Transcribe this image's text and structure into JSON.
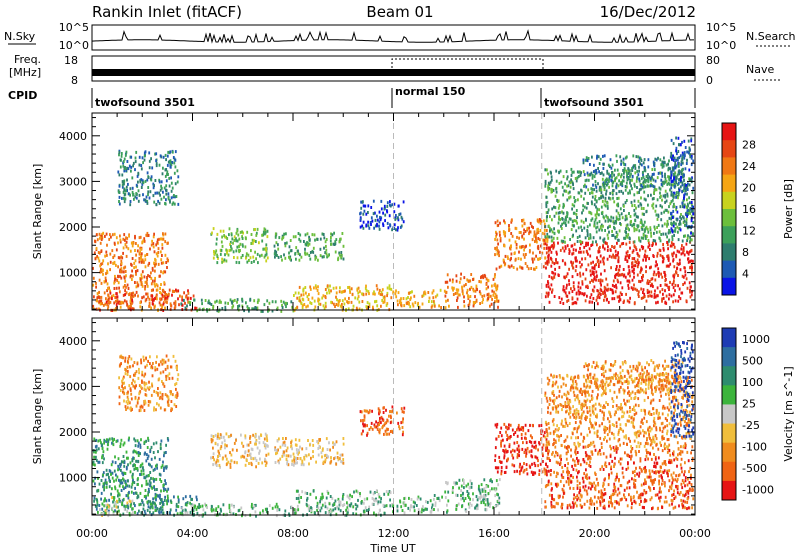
{
  "header": {
    "station": "Rankin Inlet (fitACF)",
    "beam": "Beam 01",
    "date": "16/Dec/2012"
  },
  "top_strips": {
    "nsky_label": "N.Sky",
    "nsearch_label": "N.Search",
    "nsky_ticks": [
      "10^5",
      "10^0"
    ],
    "nsearch_ticks": [
      "10^5",
      "10^0"
    ],
    "freq_label_1": "Freq.",
    "freq_label_2": "[MHz]",
    "freq_ticks": [
      "18",
      "8"
    ],
    "nave_label": "Nave",
    "nave_ticks": [
      "80",
      "0"
    ],
    "cpid_label": "CPID",
    "cpid_segments": [
      {
        "text": "twofsound 3501",
        "start_hour": 0,
        "end_hour": 12
      },
      {
        "text": "normal 150",
        "start_hour": 12,
        "end_hour": 17.9
      },
      {
        "text": "twofsound 3501",
        "start_hour": 17.9,
        "end_hour": 24
      }
    ]
  },
  "chart_data": [
    {
      "type": "heatmap",
      "title": "",
      "xlabel": "Time UT",
      "ylabel": "Slant Range [km]",
      "xlim": [
        0,
        24
      ],
      "ylim": [
        180,
        4500
      ],
      "x_ticks": [
        "00:00",
        "04:00",
        "08:00",
        "12:00",
        "16:00",
        "20:00",
        "00:00"
      ],
      "y_ticks": [
        1000,
        2000,
        3000,
        4000
      ],
      "colorbar": {
        "label": "Power [dB]",
        "ticks": [
          "4",
          "8",
          "12",
          "16",
          "20",
          "24",
          "28"
        ],
        "colors": [
          "#0a14e6",
          "#1e5ab4",
          "#2e7d6e",
          "#3ca05a",
          "#6cbf3c",
          "#c8d21e",
          "#f5a514",
          "#f07814",
          "#e64614",
          "#e61414"
        ]
      },
      "scatter_regions": [
        {
          "t0": 0.0,
          "t1": 3.0,
          "r0": 200,
          "r1": 1900,
          "level": 7
        },
        {
          "t0": 0.2,
          "t1": 1.6,
          "r0": 200,
          "r1": 600,
          "level": 8
        },
        {
          "t0": 2.3,
          "t1": 4.2,
          "r0": 200,
          "r1": 650,
          "level": 8
        },
        {
          "t0": 3.5,
          "t1": 8.0,
          "r0": 180,
          "r1": 450,
          "level": 3
        },
        {
          "t0": 4.7,
          "t1": 7.0,
          "r0": 1250,
          "r1": 2000,
          "level": 4
        },
        {
          "t0": 7.2,
          "t1": 10.0,
          "r0": 1300,
          "r1": 1900,
          "level": 3
        },
        {
          "t0": 8.0,
          "t1": 12.0,
          "r0": 200,
          "r1": 750,
          "level": 6
        },
        {
          "t0": 12.0,
          "t1": 13.9,
          "r0": 250,
          "r1": 650,
          "level": 6
        },
        {
          "t0": 14.0,
          "t1": 16.2,
          "r0": 250,
          "r1": 1000,
          "level": 7
        },
        {
          "t0": 16.0,
          "t1": 18.1,
          "r0": 1100,
          "r1": 2200,
          "level": 7
        },
        {
          "t0": 18.0,
          "t1": 23.9,
          "r0": 350,
          "r1": 1700,
          "level": 9
        },
        {
          "t0": 18.0,
          "t1": 23.9,
          "r0": 1700,
          "r1": 3300,
          "level": 3
        },
        {
          "t0": 19.5,
          "t1": 23.5,
          "r0": 2900,
          "r1": 3600,
          "level": 2
        },
        {
          "t0": 23.0,
          "t1": 23.9,
          "r0": 1900,
          "r1": 4000,
          "level": 1
        },
        {
          "t0": 1.0,
          "t1": 3.4,
          "r0": 2500,
          "r1": 3700,
          "level": 2
        },
        {
          "t0": 10.6,
          "t1": 12.4,
          "r0": 1950,
          "r1": 2600,
          "level": 1
        }
      ]
    },
    {
      "type": "heatmap",
      "title": "",
      "xlabel": "Time UT",
      "ylabel": "Slant Range [km]",
      "xlim": [
        0,
        24
      ],
      "ylim": [
        180,
        4500
      ],
      "x_ticks": [
        "00:00",
        "04:00",
        "08:00",
        "12:00",
        "16:00",
        "20:00",
        "00:00"
      ],
      "y_ticks": [
        1000,
        2000,
        3000,
        4000
      ],
      "colorbar": {
        "label": "Velocity [m s^-1]",
        "ticks": [
          "1000",
          "500",
          "100",
          "25",
          "-25",
          "-100",
          "-500",
          "-1000"
        ],
        "colors": [
          "#1e3cb4",
          "#2e6ea0",
          "#2e8c6e",
          "#3cb43c",
          "#c8c8c8",
          "#f0be3c",
          "#f08c1e",
          "#f06414",
          "#e61414"
        ]
      },
      "scatter_regions": [
        {
          "t0": 0.0,
          "t1": 3.0,
          "r0": 200,
          "r1": 1900,
          "level": 2
        },
        {
          "t0": 0.2,
          "t1": 1.6,
          "r0": 200,
          "r1": 600,
          "level": 4
        },
        {
          "t0": 2.3,
          "t1": 4.2,
          "r0": 200,
          "r1": 650,
          "level": 2
        },
        {
          "t0": 3.5,
          "t1": 8.0,
          "r0": 180,
          "r1": 450,
          "level": 3
        },
        {
          "t0": 4.7,
          "t1": 7.0,
          "r0": 1250,
          "r1": 2000,
          "level": 5
        },
        {
          "t0": 7.2,
          "t1": 10.0,
          "r0": 1300,
          "r1": 1900,
          "level": 5
        },
        {
          "t0": 8.0,
          "t1": 12.0,
          "r0": 200,
          "r1": 750,
          "level": 3
        },
        {
          "t0": 12.0,
          "t1": 13.9,
          "r0": 250,
          "r1": 650,
          "level": 3
        },
        {
          "t0": 14.0,
          "t1": 16.2,
          "r0": 250,
          "r1": 1000,
          "level": 3
        },
        {
          "t0": 16.0,
          "t1": 18.1,
          "r0": 1100,
          "r1": 2200,
          "level": 8
        },
        {
          "t0": 18.0,
          "t1": 23.9,
          "r0": 350,
          "r1": 1700,
          "level": 7
        },
        {
          "t0": 18.0,
          "t1": 23.9,
          "r0": 1700,
          "r1": 3300,
          "level": 6
        },
        {
          "t0": 19.5,
          "t1": 23.5,
          "r0": 2900,
          "r1": 3600,
          "level": 6
        },
        {
          "t0": 23.0,
          "t1": 23.9,
          "r0": 1900,
          "r1": 4000,
          "level": 0
        },
        {
          "t0": 1.0,
          "t1": 3.4,
          "r0": 2500,
          "r1": 3700,
          "level": 6
        },
        {
          "t0": 10.6,
          "t1": 12.4,
          "r0": 1950,
          "r1": 2600,
          "level": 7
        }
      ]
    }
  ]
}
